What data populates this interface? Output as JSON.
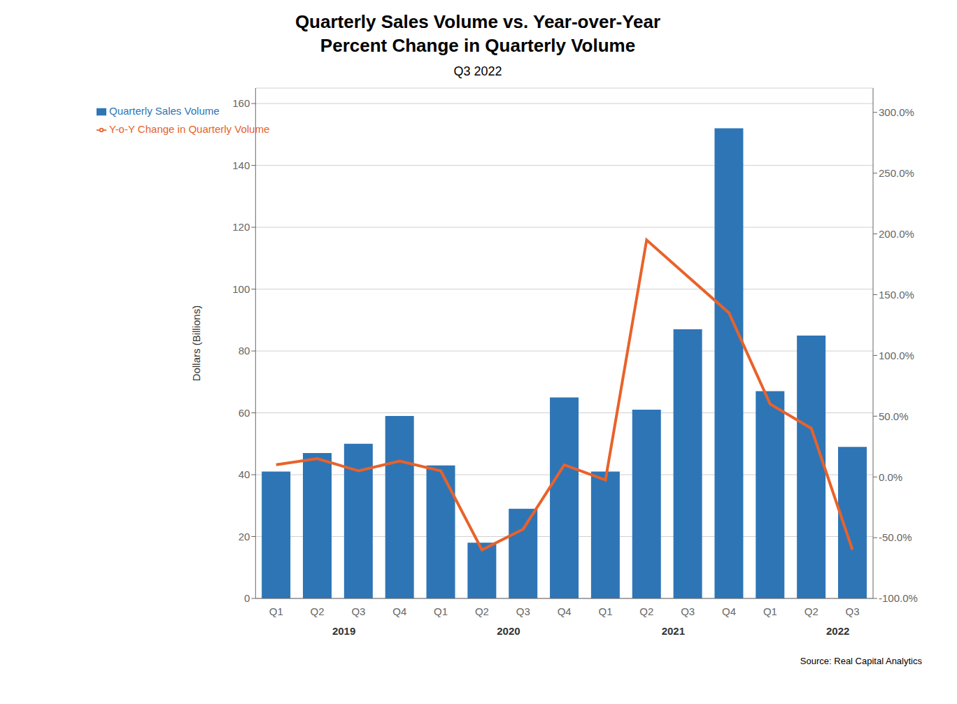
{
  "chart_data": {
    "type": "bar",
    "title": [
      "Quarterly Sales Volume vs. Year-over-Year",
      "Percent Change in Quarterly Volume"
    ],
    "subtitle": "Q3 2022",
    "categories": [
      "Q1",
      "Q2",
      "Q3",
      "Q4",
      "Q1",
      "Q2",
      "Q3",
      "Q4",
      "Q1",
      "Q2",
      "Q3",
      "Q4",
      "Q1",
      "Q2",
      "Q3"
    ],
    "series": [
      {
        "name": "Quarterly Sales Volume",
        "type": "bar",
        "color": "#2E75B6",
        "values": [
          41,
          47,
          50,
          59,
          43,
          18,
          29,
          65,
          41,
          61,
          87,
          152,
          67,
          85,
          49
        ]
      },
      {
        "name": "Y-o-Y Change in Quarterly Volume",
        "type": "line",
        "axis": "y2",
        "color": "#E8622A",
        "values": [
          10.0,
          15.0,
          5.0,
          13.0,
          5.0,
          -60.0,
          -43.0,
          10.0,
          -2.5,
          195.0,
          165.0,
          135.0,
          60.0,
          40.0,
          -60.0
        ]
      }
    ],
    "ylabel": "Dollars (Billions)",
    "ylim": [
      0,
      165
    ],
    "yticks": [
      0,
      20,
      40,
      60,
      80,
      100,
      120,
      140,
      160
    ],
    "y2lim": [
      -100,
      320
    ],
    "y2ticks": [
      {
        "value": -100,
        "label": "-100.0%"
      },
      {
        "value": -50,
        "label": "-50.0%"
      },
      {
        "value": 0,
        "label": "0.0%"
      },
      {
        "value": 50,
        "label": "50.0%"
      },
      {
        "value": 100,
        "label": "100.0%"
      },
      {
        "value": 150,
        "label": "150.0%"
      },
      {
        "value": 200,
        "label": "200.0%"
      },
      {
        "value": 250,
        "label": "250.0%"
      },
      {
        "value": 300,
        "label": "300.0%"
      }
    ],
    "annotations": [
      {
        "text": "2019",
        "x": 1.5
      },
      {
        "text": "2020",
        "x": 5.5
      },
      {
        "text": "2021",
        "x": 9.5
      },
      {
        "text": "2022",
        "x": 13.5
      },
      {
        "text": "Source: Real Capital Analytics"
      }
    ],
    "grid": true,
    "legend": "upper left"
  }
}
